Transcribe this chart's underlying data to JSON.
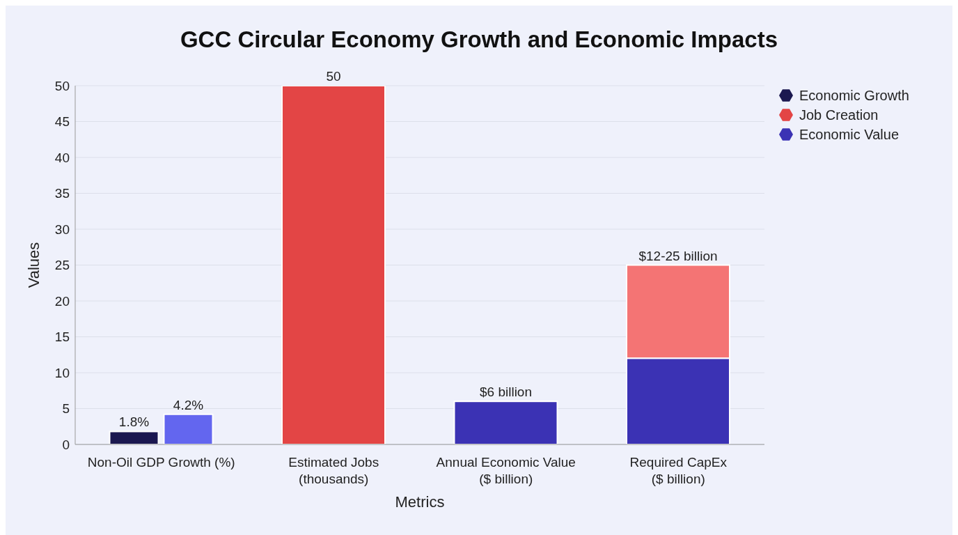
{
  "chart_data": {
    "type": "bar",
    "title": "GCC Circular Economy Growth and Economic Impacts",
    "xlabel": "Metrics",
    "ylabel": "Values",
    "categories": [
      "Non-Oil GDP Growth (%)",
      "Estimated Jobs (thousands)",
      "Annual Economic Value ($ billion)",
      "Required CapEx ($ billion)"
    ],
    "series": [
      {
        "name": "Economic Growth",
        "color": "#1b1850",
        "values": [
          1.8,
          null,
          null,
          null
        ],
        "value_labels": [
          "1.8%",
          null,
          null,
          null
        ]
      },
      {
        "name": "Job Creation",
        "color": "#e34545",
        "colors": [
          null,
          "#e34545",
          null,
          "#f47474"
        ],
        "values": [
          null,
          50,
          null,
          13
        ],
        "base": [
          null,
          0,
          null,
          12
        ],
        "value_labels": [
          null,
          "50",
          null,
          "$12-25 billion"
        ]
      },
      {
        "name": "Economic Value",
        "color": "#3b32b4",
        "values": [
          null,
          null,
          6,
          12
        ],
        "value_labels": [
          null,
          null,
          "$6 billion",
          null
        ]
      },
      {
        "color": "#6366ef",
        "values": [
          4.2,
          null,
          null,
          null
        ],
        "value_labels": [
          "4.2%",
          null,
          null,
          null
        ]
      }
    ],
    "ylim": [
      0,
      50
    ],
    "yticks": [
      0,
      5,
      10,
      15,
      20,
      25,
      30,
      35,
      40,
      45,
      50
    ],
    "grid": "y",
    "legend": "top right"
  }
}
